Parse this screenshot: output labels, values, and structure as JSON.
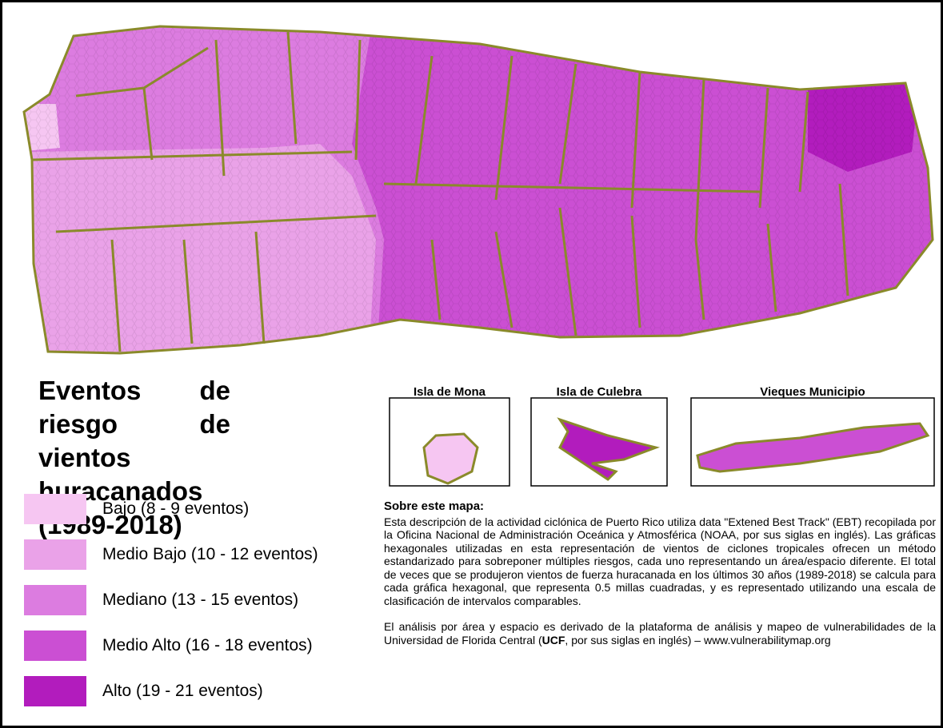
{
  "title": "Eventos de riesgo de vientos huracanados (1989-2018)",
  "legend": [
    {
      "label": "Bajo (8 - 9 eventos)",
      "color": "#f6c6f2"
    },
    {
      "label": "Medio Bajo (10 - 12 eventos)",
      "color": "#eaa2e8"
    },
    {
      "label": "Mediano (13 - 15 eventos)",
      "color": "#dc7ce0"
    },
    {
      "label": "Medio Alto (16 - 18 eventos)",
      "color": "#cb4fd3"
    },
    {
      "label": "Alto (19 - 21 eventos)",
      "color": "#b21cbd"
    }
  ],
  "insets": [
    "Isla de Mona",
    "Isla de Culebra",
    "Vieques Municipio"
  ],
  "about": {
    "heading": "Sobre este mapa:",
    "paragraph": "Esta descripción de la actividad ciclónica de Puerto Rico utiliza data \"Extened Best Track\" (EBT) recopilada por la Oficina Nacional de Administración  Oceánica y Atmosférica (NOAA, por sus siglas en inglés). Las gráficas hexagonales utilizadas en esta representación de vientos de ciclones tropicales ofrecen un método estandarizado para sobreponer múltiples riesgos, cada uno representando un área/espacio diferente. El total de veces que se produjeron vientos de fuerza huracanada en los últimos 30 años (1989-2018) se calcula para cada gráfica hexagonal, que representa 0.5 millas cuadradas, y es representado utilizando una escala de clasificación de intervalos comparables.",
    "source_before": "El análisis por área y espacio es derivado de la plataforma de análisis y mapeo de vulnerabilidades de la Universidad de Florida Central (",
    "source_bold": "UCF",
    "source_after": ", por sus siglas en inglés) – www.vulnerabilitymap.org"
  }
}
